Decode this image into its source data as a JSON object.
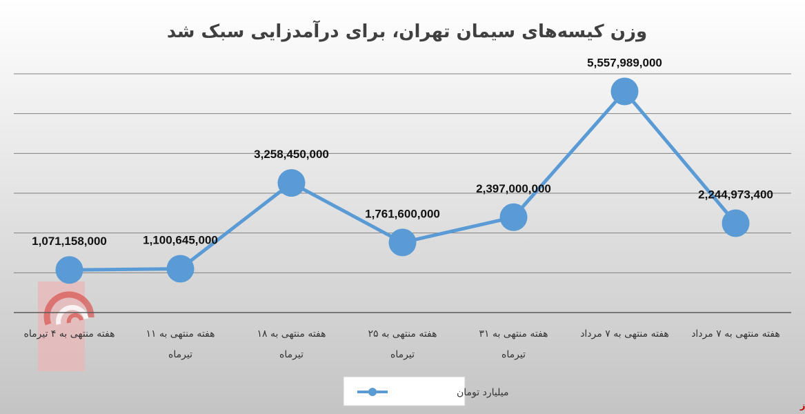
{
  "chart_data": {
    "type": "line",
    "title": "وزن کیسه‌های سیمان تهران، برای درآمدزایی سبک شد",
    "categories": [
      [
        "هفته منتهی به ۴ تیرماه"
      ],
      [
        "هفته منتهی به ۱۱",
        "تیرماه"
      ],
      [
        "هفته منتهی به ۱۸",
        "تیرماه"
      ],
      [
        "هفته منتهی به ۲۵",
        "تیرماه"
      ],
      [
        "هفته منتهی به ۳۱",
        "تیرماه"
      ],
      [
        "هفته منتهی به ۷ مرداد"
      ],
      [
        "هفته منتهی به ۷ مرداد"
      ]
    ],
    "series": [
      {
        "name": "میلیارد تومان",
        "values": [
          1071158000,
          1100645000,
          3258450000,
          1761600000,
          2397000000,
          5557989000,
          2244973400
        ],
        "labels": [
          "1,071,158,000",
          "1,100,645,000",
          "3,258,450,000",
          "1,761,600,000",
          "2,397,000,000",
          "5,557,989,000",
          "2,244,973,400"
        ]
      }
    ],
    "ylim": [
      0,
      6000000000
    ],
    "y_gridlines": [
      1000000000,
      2000000000,
      3000000000,
      4000000000,
      5000000000,
      6000000000
    ],
    "grid": true,
    "legend_position": "bottom",
    "colors": {
      "background_gradient": [
        "#ffffff",
        "#bfbfbf"
      ],
      "line": "#5b9bd5",
      "gridline": "#7f7f7f",
      "title": "#404040"
    }
  },
  "watermark": {
    "logo_text": "بورس نیوز",
    "corner_text": "بورس نیوز",
    "colors": {
      "primary": "#c00000",
      "light": "#e8a3a3"
    }
  }
}
